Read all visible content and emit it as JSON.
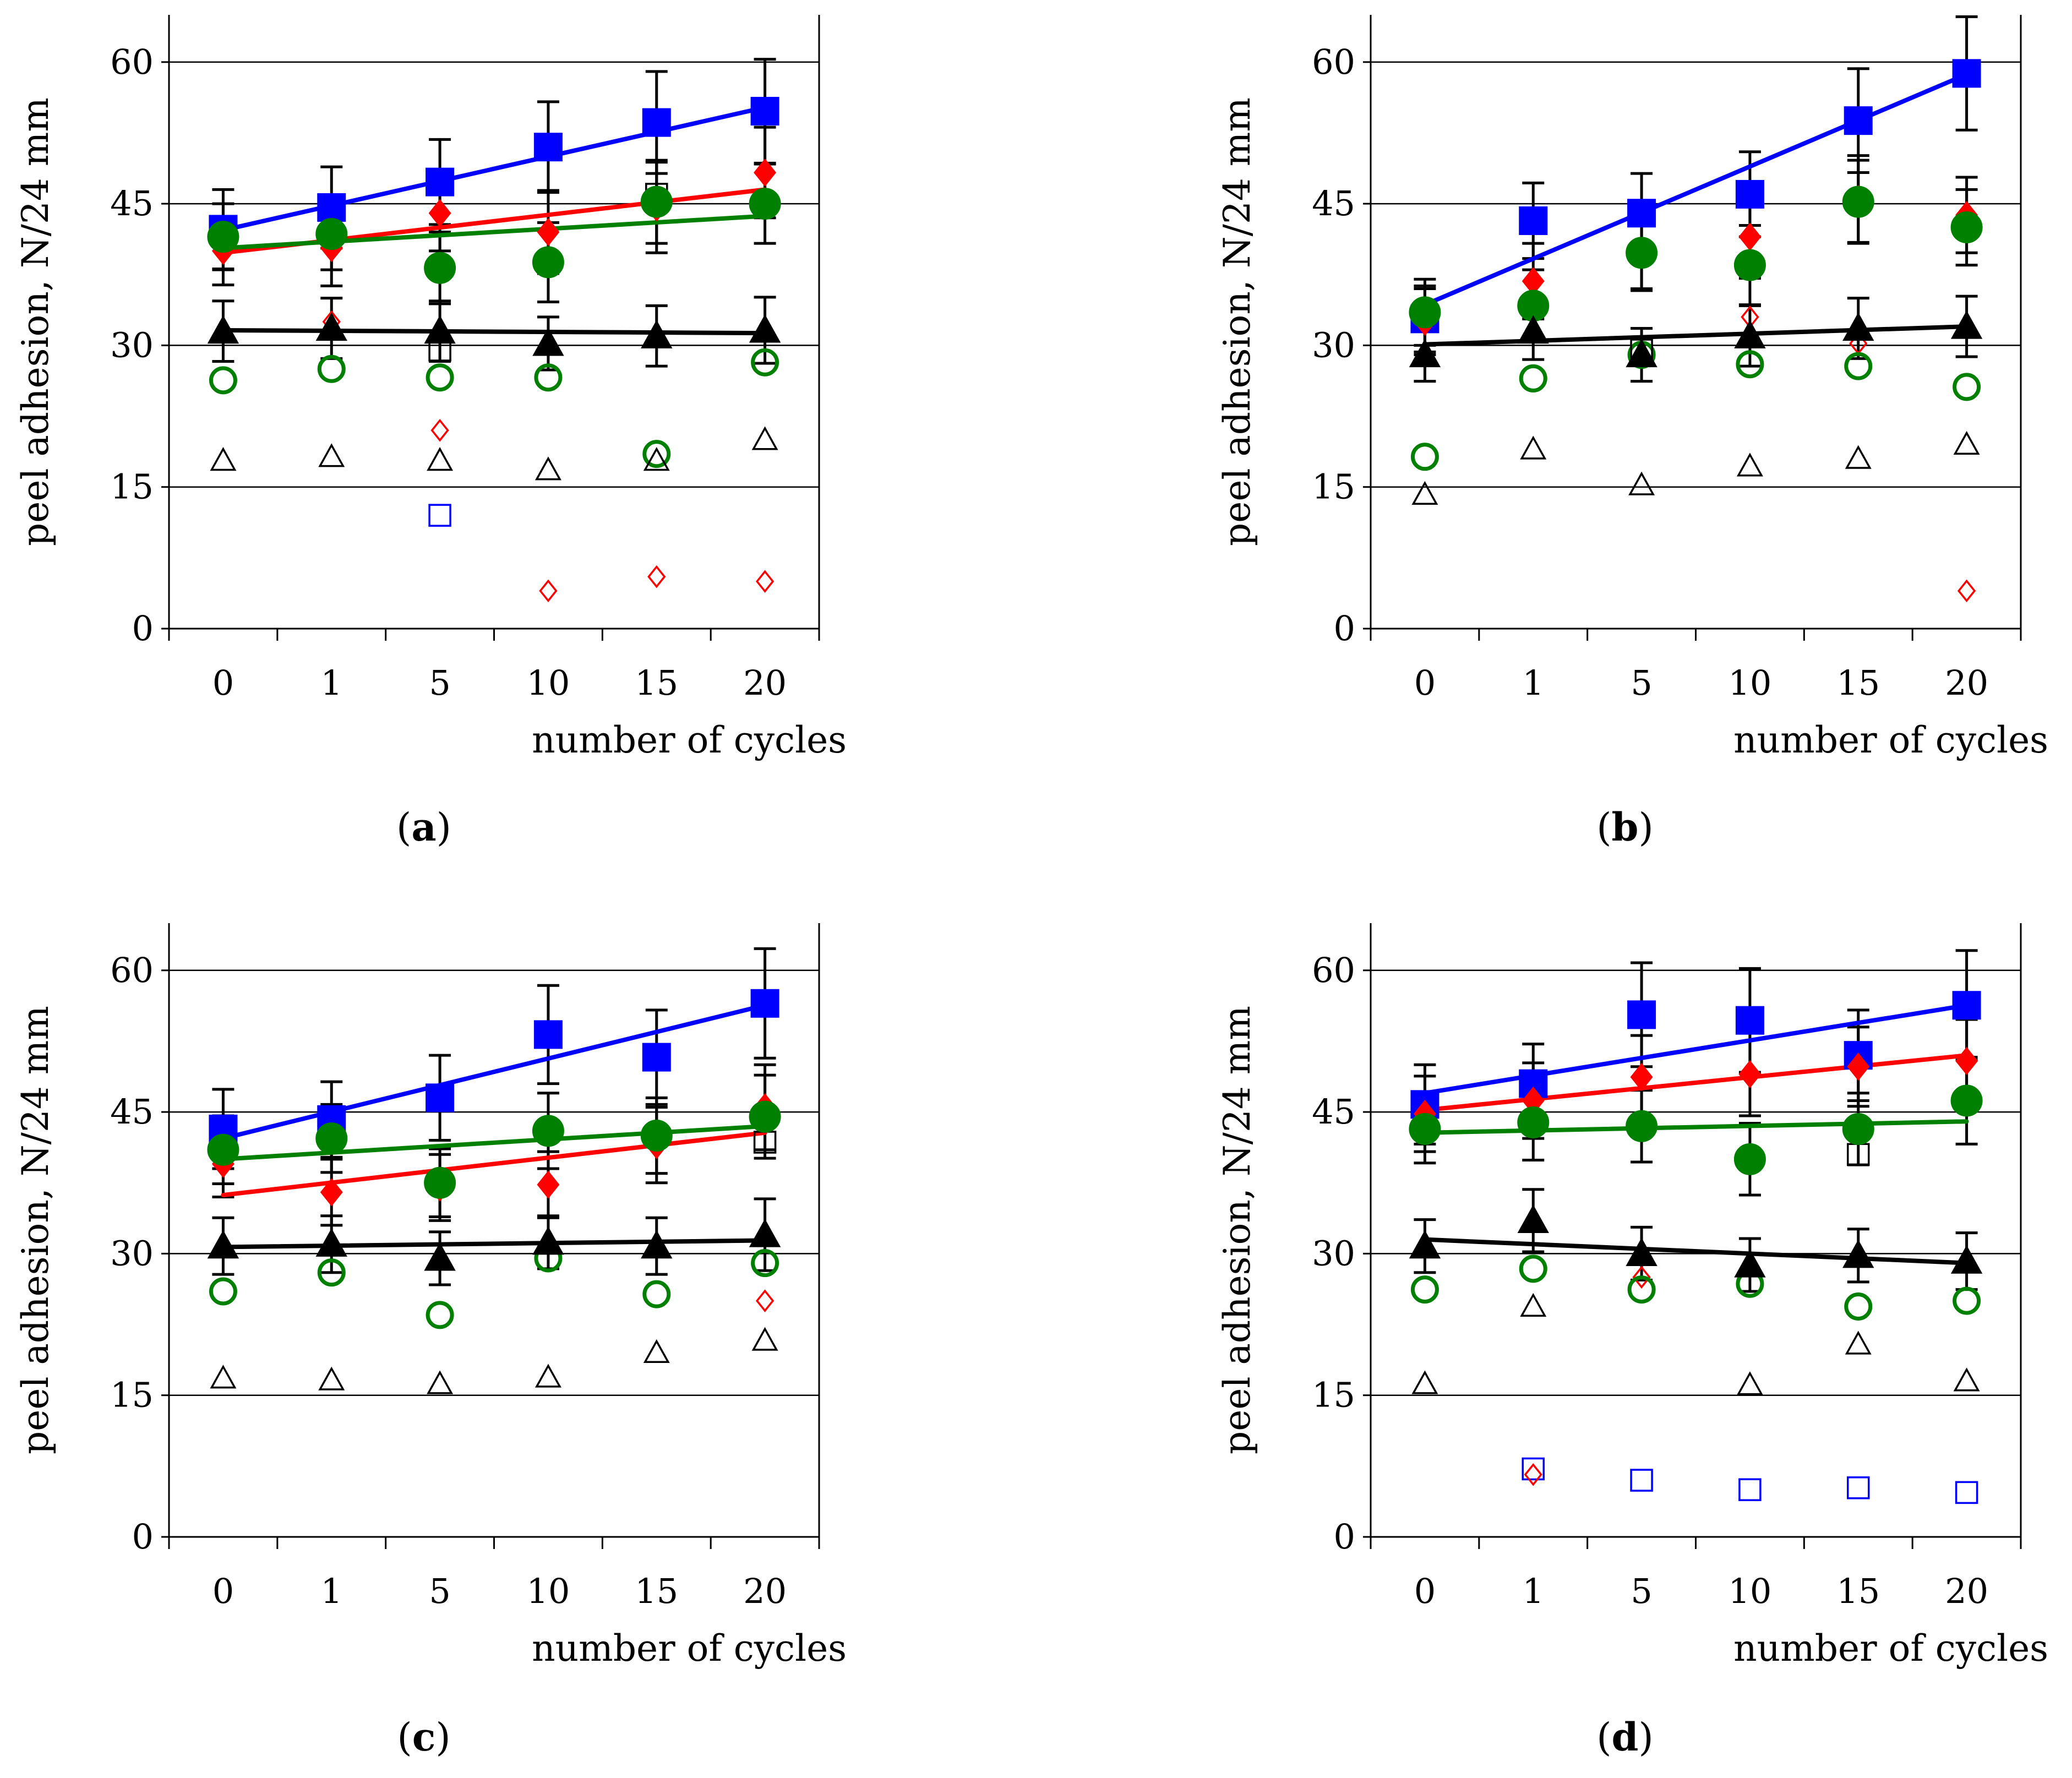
{
  "colors": {
    "blue": "#0000ff",
    "red": "#ff0000",
    "green": "#008000",
    "black": "#000000"
  },
  "chart_data": [
    {
      "type": "scatter",
      "panel_prefix": "(",
      "panel_label": "a",
      "panel_suffix": ")",
      "xlabel": "number of cycles",
      "ylabel": "peel adhesion, N/24 mm",
      "categories": [
        "0",
        "1",
        "5",
        "10",
        "15",
        "20"
      ],
      "ylim": [
        0,
        65
      ],
      "yticks": [
        0,
        15,
        30,
        45,
        60
      ],
      "gridlines": [
        15,
        30,
        45,
        60
      ],
      "series": [
        {
          "name": "blue-filled-square",
          "marker": "square",
          "filled": true,
          "color": "#0000ff",
          "values": [
            42.3,
            44.6,
            47.3,
            51.0,
            53.6,
            54.8
          ],
          "errors": [
            4.2,
            4.3,
            4.5,
            4.8,
            5.4,
            5.5
          ],
          "fit": [
            42.2,
            55.2
          ]
        },
        {
          "name": "red-filled-diamond",
          "marker": "diamond",
          "filled": true,
          "color": "#ff0000",
          "values": [
            40.0,
            40.3,
            44.0,
            42.0,
            44.6,
            48.3
          ],
          "errors": [
            3.6,
            4.0,
            4.0,
            4.4,
            4.8,
            4.8
          ],
          "fit": [
            39.8,
            46.5
          ]
        },
        {
          "name": "green-filled-circle",
          "marker": "circle",
          "filled": true,
          "color": "#008000",
          "values": [
            41.5,
            41.8,
            38.2,
            38.8,
            45.2,
            45.0
          ],
          "errors": [
            3.5,
            3.8,
            3.8,
            4.2,
            4.4,
            4.2
          ],
          "fit": [
            40.3,
            43.7
          ]
        },
        {
          "name": "black-filled-triangle",
          "marker": "triangle",
          "filled": true,
          "color": "#000000",
          "values": [
            31.5,
            31.8,
            31.5,
            30.2,
            31.0,
            31.6
          ],
          "errors": [
            3.2,
            3.2,
            3.2,
            2.8,
            3.2,
            3.5
          ],
          "fit": [
            31.6,
            31.3
          ]
        },
        {
          "name": "blue-open-square",
          "marker": "square",
          "filled": false,
          "color": "#0000ff",
          "values": [
            null,
            null,
            12.0,
            null,
            null,
            null
          ]
        },
        {
          "name": "red-open-diamond",
          "marker": "diamond",
          "filled": false,
          "color": "#ff0000",
          "values": [
            null,
            32.5,
            21.0,
            4.0,
            5.5,
            5.0
          ]
        },
        {
          "name": "green-open-circle",
          "marker": "circle",
          "filled": false,
          "color": "#008000",
          "values": [
            26.3,
            27.5,
            26.6,
            26.6,
            18.5,
            28.2
          ]
        },
        {
          "name": "black-open-triangle",
          "marker": "triangle",
          "filled": false,
          "color": "#000000",
          "values": [
            17.8,
            18.2,
            17.8,
            16.8,
            17.8,
            20.0
          ]
        },
        {
          "name": "black-open-square",
          "marker": "square",
          "filled": false,
          "color": "#000000",
          "values": [
            null,
            null,
            29.5,
            null,
            46.0,
            null
          ]
        }
      ]
    },
    {
      "type": "scatter",
      "panel_prefix": "(",
      "panel_label": "b",
      "panel_suffix": ")",
      "xlabel": "number of cycles",
      "ylabel": "peel adhesion, N/24 mm",
      "categories": [
        "0",
        "1",
        "5",
        "10",
        "15",
        "20"
      ],
      "ylim": [
        0,
        65
      ],
      "yticks": [
        0,
        15,
        30,
        45,
        60
      ],
      "gridlines": [
        15,
        30,
        45,
        60
      ],
      "series": [
        {
          "name": "blue-filled-square",
          "marker": "square",
          "filled": true,
          "color": "#0000ff",
          "values": [
            32.8,
            43.2,
            44.0,
            46.0,
            53.8,
            58.8
          ],
          "errors": [
            3.5,
            4.0,
            4.2,
            4.5,
            5.5,
            6.0
          ],
          "fit": [
            34.3,
            58.7
          ]
        },
        {
          "name": "red-filled-diamond",
          "marker": "diamond",
          "filled": true,
          "color": "#ff0000",
          "values": [
            32.5,
            36.8,
            40.0,
            41.5,
            45.5,
            43.8
          ],
          "errors": [
            3.5,
            4.0,
            4.0,
            4.4,
            4.6,
            4.0
          ]
        },
        {
          "name": "green-filled-circle",
          "marker": "circle",
          "filled": true,
          "color": "#008000",
          "values": [
            33.5,
            34.2,
            39.8,
            38.5,
            45.2,
            42.5
          ],
          "errors": [
            3.5,
            3.8,
            4.0,
            4.2,
            4.4,
            4.0
          ]
        },
        {
          "name": "black-filled-triangle",
          "marker": "triangle",
          "filled": true,
          "color": "#000000",
          "values": [
            29.0,
            31.5,
            29.0,
            31.0,
            31.8,
            32.0
          ],
          "errors": [
            2.8,
            3.0,
            2.8,
            3.2,
            3.2,
            3.2
          ],
          "fit": [
            30.1,
            32.0
          ]
        },
        {
          "name": "red-open-diamond",
          "marker": "diamond",
          "filled": false,
          "color": "#ff0000",
          "values": [
            null,
            null,
            null,
            33.0,
            30.2,
            4.0
          ]
        },
        {
          "name": "green-open-circle",
          "marker": "circle",
          "filled": false,
          "color": "#008000",
          "values": [
            18.2,
            26.5,
            29.0,
            28.0,
            27.8,
            25.6
          ]
        },
        {
          "name": "black-open-triangle",
          "marker": "triangle",
          "filled": false,
          "color": "#000000",
          "values": [
            14.2,
            19.0,
            15.2,
            17.2,
            18.0,
            19.5
          ]
        },
        {
          "name": "black-open-square",
          "marker": "square",
          "filled": false,
          "color": "#000000",
          "values": [
            null,
            null,
            29.5,
            null,
            null,
            null
          ]
        }
      ]
    },
    {
      "type": "scatter",
      "panel_prefix": "(",
      "panel_label": "c",
      "panel_suffix": ")",
      "xlabel": "number of cycles",
      "ylabel": "peel adhesion, N/24 mm",
      "categories": [
        "0",
        "1",
        "5",
        "10",
        "15",
        "20"
      ],
      "ylim": [
        0,
        65
      ],
      "yticks": [
        0,
        15,
        30,
        45,
        60
      ],
      "gridlines": [
        15,
        30,
        45,
        60
      ],
      "series": [
        {
          "name": "blue-filled-square",
          "marker": "square",
          "filled": true,
          "color": "#0000ff",
          "values": [
            43.2,
            44.2,
            46.5,
            53.2,
            50.8,
            56.5
          ],
          "errors": [
            4.2,
            4.0,
            4.5,
            5.2,
            5.0,
            5.8
          ],
          "fit": [
            42.2,
            56.3
          ]
        },
        {
          "name": "red-filled-diamond",
          "marker": "diamond",
          "filled": true,
          "color": "#ff0000",
          "values": [
            39.5,
            36.5,
            37.0,
            37.3,
            41.5,
            45.5
          ],
          "errors": [
            3.5,
            3.5,
            3.5,
            3.5,
            4.0,
            4.5
          ],
          "fit": [
            36.2,
            42.8
          ]
        },
        {
          "name": "green-filled-circle",
          "marker": "circle",
          "filled": true,
          "color": "#008000",
          "values": [
            41.0,
            42.2,
            37.5,
            43.0,
            42.5,
            44.5
          ],
          "errors": [
            3.6,
            3.6,
            3.6,
            4.0,
            4.0,
            4.4
          ],
          "fit": [
            40.0,
            43.5
          ]
        },
        {
          "name": "black-filled-triangle",
          "marker": "triangle",
          "filled": true,
          "color": "#000000",
          "values": [
            30.8,
            31.0,
            29.5,
            31.2,
            30.8,
            32.0
          ],
          "errors": [
            3.0,
            3.0,
            2.8,
            2.8,
            3.0,
            3.8
          ],
          "fit": [
            30.7,
            31.4
          ]
        },
        {
          "name": "red-open-diamond",
          "marker": "diamond",
          "filled": false,
          "color": "#ff0000",
          "values": [
            null,
            null,
            null,
            null,
            null,
            25.0
          ]
        },
        {
          "name": "green-open-circle",
          "marker": "circle",
          "filled": false,
          "color": "#008000",
          "values": [
            26.0,
            28.0,
            23.5,
            29.5,
            25.7,
            29.0
          ]
        },
        {
          "name": "black-open-triangle",
          "marker": "triangle",
          "filled": false,
          "color": "#000000",
          "values": [
            16.8,
            16.6,
            16.2,
            16.9,
            19.5,
            20.8
          ]
        },
        {
          "name": "black-open-square",
          "marker": "square",
          "filled": false,
          "color": "#000000",
          "values": [
            null,
            null,
            null,
            null,
            null,
            41.8
          ]
        }
      ]
    },
    {
      "type": "scatter",
      "panel_prefix": "(",
      "panel_label": "d",
      "panel_suffix": ")",
      "xlabel": "number of cycles",
      "ylabel": "peel adhesion, N/24 mm",
      "categories": [
        "0",
        "1",
        "5",
        "10",
        "15",
        "20"
      ],
      "ylim": [
        0,
        65
      ],
      "yticks": [
        0,
        15,
        30,
        45,
        60
      ],
      "gridlines": [
        15,
        30,
        45,
        60
      ],
      "series": [
        {
          "name": "blue-filled-square",
          "marker": "square",
          "filled": true,
          "color": "#0000ff",
          "values": [
            45.8,
            48.0,
            55.3,
            54.7,
            51.0,
            56.3
          ],
          "errors": [
            4.2,
            4.2,
            5.5,
            5.5,
            4.8,
            5.8
          ],
          "fit": [
            47.0,
            56.3
          ]
        },
        {
          "name": "red-filled-diamond",
          "marker": "diamond",
          "filled": true,
          "color": "#ff0000",
          "values": [
            44.8,
            46.2,
            48.7,
            49.0,
            49.8,
            50.4
          ],
          "errors": [
            4.0,
            4.0,
            4.4,
            4.4,
            4.2,
            4.4
          ],
          "fit": [
            45.2,
            51.0
          ]
        },
        {
          "name": "green-filled-circle",
          "marker": "circle",
          "filled": true,
          "color": "#008000",
          "values": [
            43.2,
            43.9,
            43.5,
            40.0,
            43.2,
            46.2
          ],
          "errors": [
            3.6,
            4.0,
            3.8,
            3.8,
            3.8,
            4.6
          ],
          "fit": [
            42.8,
            44.0
          ]
        },
        {
          "name": "black-filled-triangle",
          "marker": "triangle",
          "filled": true,
          "color": "#000000",
          "values": [
            30.8,
            33.5,
            30.0,
            28.8,
            29.8,
            29.2
          ],
          "errors": [
            2.8,
            3.3,
            2.8,
            2.8,
            2.8,
            3.0
          ],
          "fit": [
            31.5,
            29.0
          ]
        },
        {
          "name": "blue-open-square",
          "marker": "square",
          "filled": false,
          "color": "#0000ff",
          "values": [
            null,
            7.2,
            6.0,
            5.0,
            5.2,
            4.7
          ]
        },
        {
          "name": "red-open-diamond",
          "marker": "diamond",
          "filled": false,
          "color": "#ff0000",
          "values": [
            null,
            6.6,
            27.5,
            null,
            null,
            null
          ]
        },
        {
          "name": "green-open-circle",
          "marker": "circle",
          "filled": false,
          "color": "#008000",
          "values": [
            26.2,
            28.4,
            26.2,
            26.8,
            24.4,
            25.0
          ]
        },
        {
          "name": "black-open-triangle",
          "marker": "triangle",
          "filled": false,
          "color": "#000000",
          "values": [
            16.2,
            24.4,
            null,
            16.1,
            20.4,
            16.5
          ]
        },
        {
          "name": "black-open-square",
          "marker": "square",
          "filled": false,
          "color": "#000000",
          "values": [
            null,
            null,
            null,
            null,
            40.5,
            null
          ]
        }
      ]
    }
  ]
}
